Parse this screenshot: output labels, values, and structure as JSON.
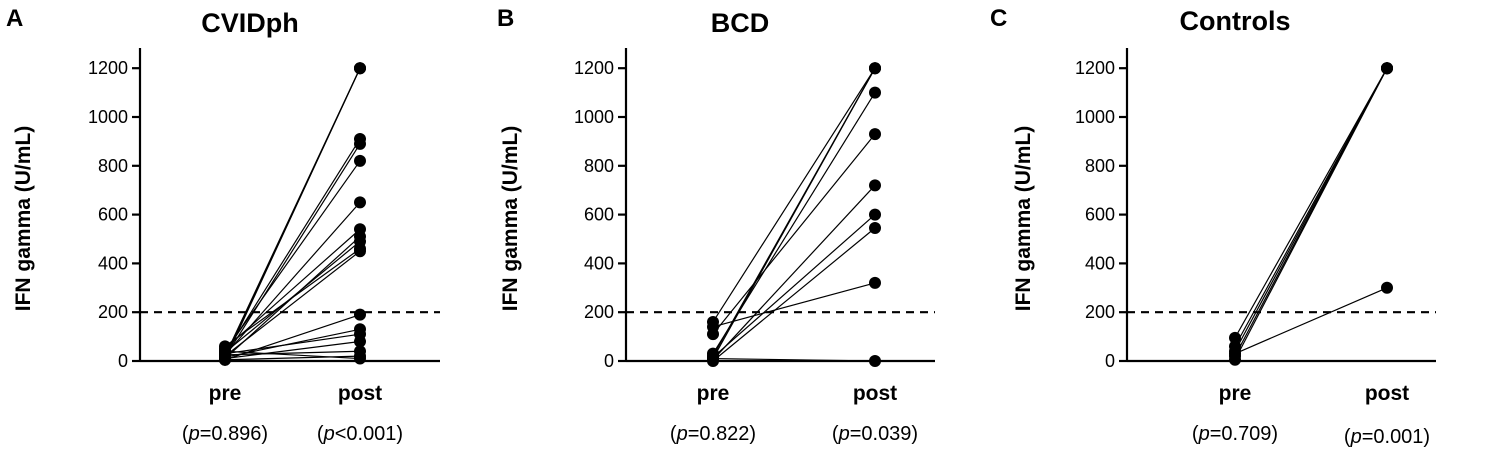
{
  "chart_data": [
    {
      "type": "line",
      "panel_label": "A",
      "title": "CVIDph",
      "ylabel": "IFN gamma (U/mL)",
      "ylim": [
        0,
        1250
      ],
      "yticks": [
        0,
        200,
        400,
        600,
        800,
        1000,
        1200
      ],
      "categories": [
        "pre",
        "post"
      ],
      "p_values": [
        "(p=0.896)",
        "(p<0.001)"
      ],
      "threshold": 200,
      "pairs": [
        [
          10,
          1200
        ],
        [
          20,
          1200
        ],
        [
          5,
          1200
        ],
        [
          30,
          910
        ],
        [
          15,
          890
        ],
        [
          40,
          820
        ],
        [
          25,
          650
        ],
        [
          50,
          540
        ],
        [
          10,
          510
        ],
        [
          35,
          490
        ],
        [
          60,
          460
        ],
        [
          20,
          450
        ],
        [
          5,
          190
        ],
        [
          15,
          130
        ],
        [
          30,
          110
        ],
        [
          10,
          80
        ],
        [
          25,
          40
        ],
        [
          5,
          20
        ],
        [
          40,
          10
        ]
      ]
    },
    {
      "type": "line",
      "panel_label": "B",
      "title": "BCD",
      "ylabel": "IFN gamma (U/mL)",
      "ylim": [
        0,
        1250
      ],
      "yticks": [
        0,
        200,
        400,
        600,
        800,
        1000,
        1200
      ],
      "categories": [
        "pre",
        "post"
      ],
      "p_values": [
        "(p=0.822)",
        "(p=0.039)"
      ],
      "threshold": 200,
      "pairs": [
        [
          160,
          1200
        ],
        [
          10,
          1200
        ],
        [
          20,
          1200
        ],
        [
          30,
          1100
        ],
        [
          110,
          930
        ],
        [
          5,
          720
        ],
        [
          15,
          600
        ],
        [
          0,
          545
        ],
        [
          140,
          320
        ],
        [
          10,
          0
        ]
      ]
    },
    {
      "type": "line",
      "panel_label": "C",
      "title": "Controls",
      "ylabel": "IFN gamma (U/mL)",
      "ylim": [
        0,
        1250
      ],
      "yticks": [
        0,
        200,
        400,
        600,
        800,
        1000,
        1200
      ],
      "categories": [
        "pre",
        "post"
      ],
      "p_values": [
        "(p=0.709)",
        "(p=0.001)"
      ],
      "threshold": 200,
      "pairs": [
        [
          95,
          1200
        ],
        [
          60,
          1200
        ],
        [
          40,
          1200
        ],
        [
          20,
          1200
        ],
        [
          5,
          1200
        ],
        [
          30,
          300
        ]
      ]
    }
  ]
}
